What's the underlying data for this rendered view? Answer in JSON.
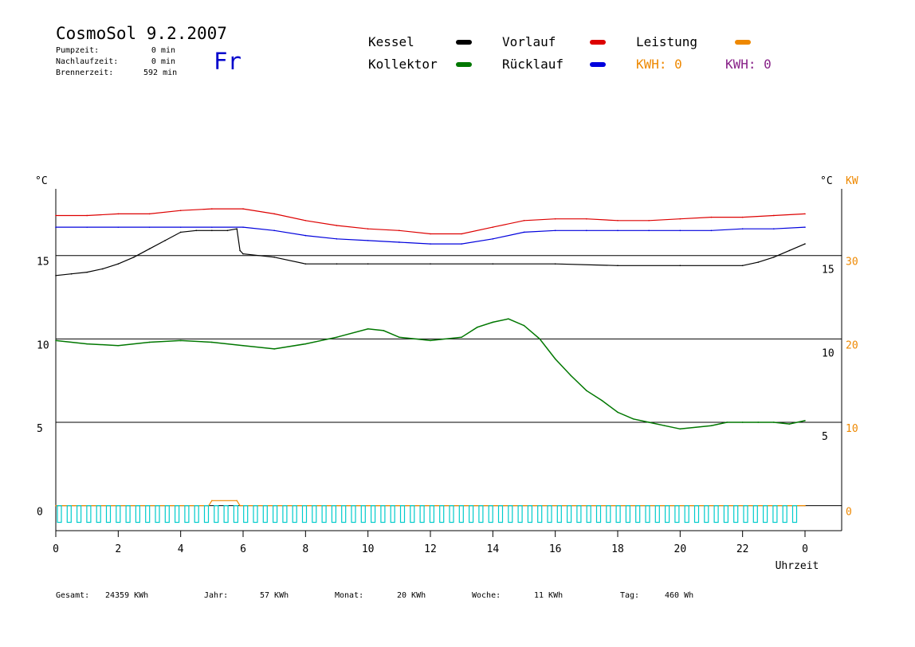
{
  "header": {
    "title": "CosmoSol 9.2.2007",
    "day": "Fr",
    "info": [
      {
        "label": "Pumpzeit:",
        "value": "0 min"
      },
      {
        "label": "Nachlaufzeit:",
        "value": "0 min"
      },
      {
        "label": "Brennerzeit:",
        "value": "592 min"
      }
    ]
  },
  "legend": {
    "kessel": "Kessel",
    "vorlauf": "Vorlauf",
    "leistung": "Leistung",
    "kollektor": "Kollektor",
    "ruecklauf": "Rücklauf",
    "kwh1": "KWH: 0",
    "kwh2": "KWH: 0"
  },
  "colors": {
    "kessel": "#000000",
    "vorlauf": "#dd0000",
    "leistung": "#ee8800",
    "kollektor": "#007700",
    "ruecklauf": "#0000dd",
    "kwh2": "#882288",
    "pump": "#00cccc",
    "grid": "#000000"
  },
  "footer": {
    "gesamt_label": "Gesamt:",
    "gesamt_value": "24359 KWh",
    "jahr_label": "Jahr:",
    "jahr_value": "57 KWh",
    "monat_label": "Monat:",
    "monat_value": "20 KWh",
    "woche_label": "Woche:",
    "woche_value": "11 KWh",
    "tag_label": "Tag:",
    "tag_value": "460 Wh"
  },
  "chart_data": {
    "type": "line",
    "xlabel": "Uhrzeit",
    "ylabel_left": "°C",
    "ylabel_right_temp": "°C",
    "ylabel_right_power": "KW",
    "x_ticks": [
      "0",
      "2",
      "4",
      "6",
      "8",
      "10",
      "12",
      "14",
      "16",
      "18",
      "20",
      "22",
      "0"
    ],
    "y_ticks_left": [
      "0",
      "5",
      "10",
      "15"
    ],
    "y_ticks_right_temp": [
      "5",
      "10",
      "15"
    ],
    "y_ticks_right_power": [
      "0",
      "10",
      "20",
      "30"
    ],
    "xlim": [
      0,
      24
    ],
    "ylim": [
      -1.5,
      19
    ],
    "grid": "horizontal",
    "series": [
      {
        "name": "Vorlauf",
        "key": "vorlauf",
        "x": [
          0,
          1,
          2,
          3,
          4,
          5,
          6,
          7,
          8,
          9,
          10,
          11,
          12,
          13,
          14,
          15,
          16,
          17,
          18,
          19,
          20,
          21,
          22,
          23,
          24
        ],
        "y": [
          17.4,
          17.4,
          17.5,
          17.5,
          17.7,
          17.8,
          17.8,
          17.5,
          17.1,
          16.8,
          16.6,
          16.5,
          16.3,
          16.3,
          16.7,
          17.1,
          17.2,
          17.2,
          17.1,
          17.1,
          17.2,
          17.3,
          17.3,
          17.4,
          17.5
        ]
      },
      {
        "name": "Rücklauf",
        "key": "ruecklauf",
        "x": [
          0,
          1,
          2,
          3,
          4,
          5,
          6,
          7,
          8,
          9,
          10,
          11,
          12,
          13,
          14,
          15,
          16,
          17,
          18,
          19,
          20,
          21,
          22,
          23,
          24
        ],
        "y": [
          16.7,
          16.7,
          16.7,
          16.7,
          16.7,
          16.7,
          16.7,
          16.5,
          16.2,
          16.0,
          15.9,
          15.8,
          15.7,
          15.7,
          16.0,
          16.4,
          16.5,
          16.5,
          16.5,
          16.5,
          16.5,
          16.5,
          16.6,
          16.6,
          16.7
        ]
      },
      {
        "name": "Kessel",
        "key": "kessel",
        "x": [
          0,
          0.5,
          1,
          1.5,
          2,
          2.5,
          3,
          3.5,
          4,
          4.5,
          5,
          5.5,
          5.8,
          5.9,
          6,
          7,
          8,
          9,
          10,
          12,
          14,
          16,
          18,
          20,
          22,
          22.5,
          23,
          23.5,
          24
        ],
        "y": [
          13.8,
          13.9,
          14.0,
          14.2,
          14.5,
          14.9,
          15.4,
          15.9,
          16.4,
          16.5,
          16.5,
          16.5,
          16.6,
          15.3,
          15.1,
          14.9,
          14.5,
          14.5,
          14.5,
          14.5,
          14.5,
          14.5,
          14.4,
          14.4,
          14.4,
          14.6,
          14.9,
          15.3,
          15.7
        ]
      },
      {
        "name": "Kollektor",
        "key": "kollektor",
        "x": [
          0,
          1,
          2,
          3,
          4,
          5,
          6,
          7,
          8,
          9,
          10,
          10.5,
          11,
          11.5,
          12,
          13,
          13.5,
          14,
          14.5,
          15,
          15.5,
          16,
          16.5,
          17,
          17.5,
          18,
          18.5,
          19,
          19.5,
          20,
          20.5,
          21,
          21.5,
          22,
          22.5,
          23,
          23.5,
          24
        ],
        "y": [
          9.9,
          9.7,
          9.6,
          9.8,
          9.9,
          9.8,
          9.6,
          9.4,
          9.7,
          10.1,
          10.6,
          10.5,
          10.1,
          10.0,
          9.9,
          10.1,
          10.7,
          11.0,
          11.2,
          10.8,
          10.0,
          8.8,
          7.8,
          6.9,
          6.3,
          5.6,
          5.2,
          5.0,
          4.8,
          4.6,
          4.7,
          4.8,
          5.0,
          5.0,
          5.0,
          5.0,
          4.9,
          5.1
        ]
      },
      {
        "name": "Leistung",
        "key": "leistung",
        "x": [
          0,
          4.9,
          5.0,
          5.8,
          5.9,
          24
        ],
        "y": [
          0,
          0,
          0.3,
          0.3,
          0,
          0
        ]
      }
    ]
  }
}
